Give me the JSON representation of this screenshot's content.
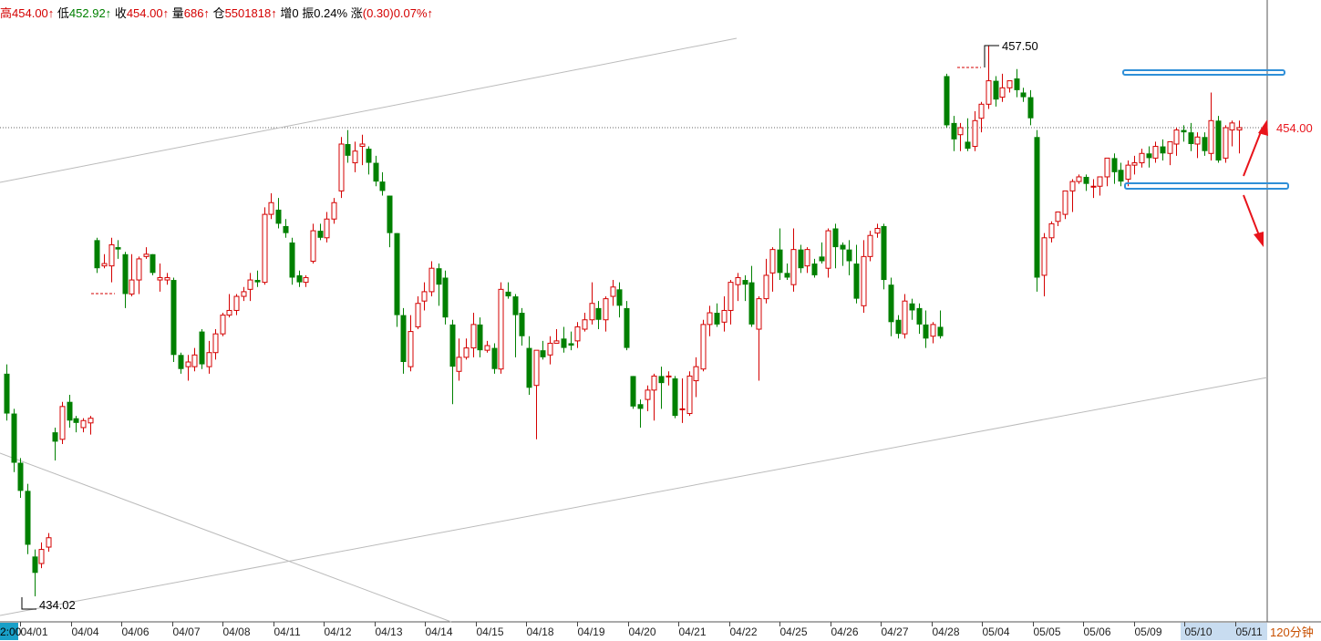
{
  "header": {
    "high_label": "高",
    "high_value": "454.00↑",
    "low_label": "低",
    "low_value": "452.92↑",
    "close_label": "收",
    "close_value": "454.00↑",
    "volume_label": "量",
    "volume_value": "686↑",
    "oi_label": "仓",
    "oi_value": "5501818↑",
    "inc_label": "增",
    "inc_value": "0",
    "amp_label": "振",
    "amp_value": "0.24%",
    "chg_label": "涨",
    "chg_value": "(0.30)0.07%↑"
  },
  "period_label": "120分钟",
  "left_edge_label": "2:00",
  "colors": {
    "up": "#d40000",
    "down": "#008000",
    "zone": "#2f8fd8",
    "arrow": "#e8141b"
  },
  "chart_data": {
    "type": "candlestick",
    "x_ticks": [
      "04/01",
      "04/04",
      "04/06",
      "04/07",
      "04/08",
      "04/11",
      "04/12",
      "04/13",
      "04/14",
      "04/15",
      "04/18",
      "04/19",
      "04/20",
      "04/21",
      "04/22",
      "04/25",
      "04/26",
      "04/27",
      "04/28",
      "05/04",
      "05/05",
      "05/06",
      "05/09",
      "05/10",
      "05/11"
    ],
    "annotations": {
      "high_mark": "457.50",
      "low_mark": "434.02",
      "price_label": "454.00"
    },
    "price_range_approx": [
      434.0,
      458.5
    ],
    "candles": [
      [
        443.5,
        441.8,
        443.9,
        441.5
      ],
      [
        441.8,
        439.7,
        442.0,
        439.3
      ],
      [
        439.7,
        438.5,
        439.9,
        438.2
      ],
      [
        438.5,
        436.2,
        438.8,
        435.8
      ],
      [
        435.7,
        435.0,
        436.0,
        434.0
      ],
      [
        435.4,
        436.0,
        436.3,
        435.2
      ],
      [
        436.1,
        436.5,
        436.7,
        435.9
      ],
      [
        441.0,
        440.6,
        441.2,
        439.8
      ],
      [
        440.7,
        442.1,
        442.3,
        440.5
      ],
      [
        442.3,
        441.5,
        442.6,
        441.2
      ],
      [
        441.6,
        441.4,
        441.7,
        441.0
      ],
      [
        441.2,
        441.5,
        441.6,
        441.0
      ],
      [
        441.4,
        441.6,
        441.7,
        440.9
      ],
      [
        449.2,
        448.0,
        449.3,
        447.8
      ],
      [
        448.1,
        448.2,
        448.6,
        448.0
      ],
      [
        448.1,
        449.0,
        449.3,
        447.4
      ],
      [
        448.9,
        448.8,
        449.2,
        448.4
      ],
      [
        448.6,
        446.9,
        448.7,
        446.3
      ],
      [
        446.9,
        447.5,
        448.6,
        446.8
      ],
      [
        447.5,
        448.4,
        448.5,
        446.9
      ],
      [
        448.5,
        448.6,
        448.9,
        448.4
      ],
      [
        448.6,
        447.8,
        448.6,
        447.7
      ],
      [
        447.5,
        447.6,
        448.2,
        447.0
      ],
      [
        447.5,
        447.6,
        447.8,
        447.3
      ],
      [
        447.5,
        444.3,
        447.6,
        444.0
      ],
      [
        444.3,
        443.7,
        444.4,
        443.5
      ],
      [
        443.8,
        444.0,
        444.3,
        443.2
      ],
      [
        443.8,
        444.3,
        444.6,
        443.6
      ],
      [
        445.3,
        443.9,
        445.4,
        443.7
      ],
      [
        443.8,
        444.4,
        444.9,
        443.5
      ],
      [
        444.4,
        445.2,
        445.4,
        444.1
      ],
      [
        445.2,
        446.0,
        446.1,
        445.1
      ],
      [
        446.0,
        446.2,
        446.9,
        445.9
      ],
      [
        446.2,
        446.8,
        446.9,
        446.0
      ],
      [
        446.8,
        447.0,
        447.2,
        446.6
      ],
      [
        447.1,
        447.5,
        447.8,
        446.6
      ],
      [
        447.5,
        447.4,
        447.9,
        447.2
      ],
      [
        447.4,
        450.3,
        450.6,
        447.3
      ],
      [
        450.3,
        450.8,
        451.2,
        450.1
      ],
      [
        450.5,
        449.9,
        451.0,
        449.7
      ],
      [
        449.8,
        449.5,
        450.1,
        449.3
      ],
      [
        449.1,
        447.6,
        449.3,
        447.3
      ],
      [
        447.7,
        447.4,
        447.9,
        447.2
      ],
      [
        447.4,
        447.6,
        447.7,
        447.2
      ],
      [
        448.3,
        449.6,
        449.9,
        448.2
      ],
      [
        449.6,
        449.3,
        449.9,
        449.2
      ],
      [
        449.3,
        450.1,
        450.4,
        449.1
      ],
      [
        450.1,
        450.8,
        451.0,
        449.9
      ],
      [
        451.3,
        453.3,
        453.6,
        451.0
      ],
      [
        453.3,
        452.8,
        453.9,
        452.5
      ],
      [
        452.5,
        453.0,
        453.4,
        452.1
      ],
      [
        453.2,
        453.3,
        453.7,
        452.4
      ],
      [
        453.1,
        452.5,
        453.2,
        452.0
      ],
      [
        452.5,
        451.7,
        452.8,
        451.5
      ],
      [
        451.7,
        451.3,
        452.1,
        451.1
      ],
      [
        451.1,
        449.5,
        451.1,
        448.9
      ],
      [
        449.5,
        446.0,
        449.5,
        445.5
      ],
      [
        446.0,
        444.0,
        446.3,
        443.5
      ],
      [
        443.8,
        445.3,
        446.0,
        443.6
      ],
      [
        445.5,
        446.5,
        446.8,
        445.4
      ],
      [
        446.6,
        447.0,
        447.4,
        446.2
      ],
      [
        447.0,
        448.0,
        448.3,
        446.8
      ],
      [
        448.0,
        447.3,
        448.2,
        446.4
      ],
      [
        447.6,
        445.9,
        447.9,
        445.6
      ],
      [
        445.6,
        443.8,
        445.8,
        442.2
      ],
      [
        443.6,
        444.2,
        445.0,
        443.2
      ],
      [
        444.2,
        444.6,
        445.0,
        444.1
      ],
      [
        444.6,
        445.6,
        446.1,
        444.2
      ],
      [
        445.6,
        444.5,
        445.9,
        444.2
      ],
      [
        444.5,
        444.7,
        444.9,
        444.4
      ],
      [
        444.6,
        443.7,
        444.8,
        443.5
      ],
      [
        443.7,
        447.1,
        447.4,
        443.5
      ],
      [
        447.0,
        446.8,
        447.4,
        446.7
      ],
      [
        446.8,
        446.0,
        446.9,
        444.2
      ],
      [
        446.1,
        445.1,
        446.3,
        444.7
      ],
      [
        444.6,
        442.9,
        445.1,
        442.6
      ],
      [
        443.0,
        444.5,
        444.5,
        440.7
      ],
      [
        444.5,
        444.2,
        444.9,
        444.1
      ],
      [
        444.3,
        444.8,
        445.1,
        443.9
      ],
      [
        444.8,
        444.9,
        445.4,
        444.8
      ],
      [
        445.0,
        444.6,
        445.5,
        444.4
      ],
      [
        444.8,
        444.7,
        445.3,
        444.5
      ],
      [
        444.9,
        445.5,
        445.7,
        444.6
      ],
      [
        445.4,
        445.8,
        446.1,
        445.3
      ],
      [
        445.8,
        446.5,
        447.4,
        445.6
      ],
      [
        446.3,
        445.8,
        446.6,
        445.4
      ],
      [
        445.8,
        446.7,
        446.8,
        445.3
      ],
      [
        446.8,
        447.2,
        447.5,
        446.4
      ],
      [
        447.1,
        446.4,
        447.4,
        445.9
      ],
      [
        446.3,
        444.6,
        446.6,
        444.5
      ],
      [
        443.4,
        442.1,
        443.4,
        442.0
      ],
      [
        442.2,
        442.0,
        442.4,
        441.2
      ],
      [
        442.4,
        442.8,
        443.0,
        441.9
      ],
      [
        442.8,
        443.4,
        443.5,
        441.5
      ],
      [
        443.4,
        443.1,
        443.8,
        442.0
      ],
      [
        443.4,
        443.4,
        443.6,
        443.0
      ],
      [
        443.3,
        441.7,
        443.4,
        441.6
      ],
      [
        442.0,
        442.0,
        443.3,
        441.4
      ],
      [
        441.8,
        443.4,
        443.6,
        441.7
      ],
      [
        443.2,
        443.8,
        444.2,
        442.5
      ],
      [
        443.7,
        445.6,
        445.8,
        443.6
      ],
      [
        445.6,
        446.1,
        446.4,
        445.1
      ],
      [
        446.1,
        445.6,
        446.5,
        445.5
      ],
      [
        445.7,
        446.2,
        446.8,
        445.3
      ],
      [
        446.2,
        447.4,
        447.5,
        445.6
      ],
      [
        447.3,
        447.6,
        447.8,
        446.6
      ],
      [
        447.5,
        447.3,
        447.7,
        446.6
      ],
      [
        447.4,
        445.6,
        448.1,
        445.5
      ],
      [
        445.4,
        446.7,
        446.8,
        443.2
      ],
      [
        446.7,
        447.7,
        448.4,
        446.5
      ],
      [
        447.8,
        448.8,
        448.9,
        447.0
      ],
      [
        448.8,
        447.8,
        449.7,
        447.5
      ],
      [
        447.8,
        447.6,
        448.2,
        447.5
      ],
      [
        447.3,
        448.8,
        449.7,
        447.0
      ],
      [
        448.8,
        448.0,
        449.0,
        447.8
      ],
      [
        448.1,
        448.8,
        448.9,
        447.8
      ],
      [
        448.2,
        447.7,
        448.4,
        447.6
      ],
      [
        448.5,
        448.3,
        449.1,
        448.2
      ],
      [
        448.0,
        449.6,
        449.7,
        447.6
      ],
      [
        449.7,
        448.9,
        449.9,
        448.0
      ],
      [
        449.0,
        448.8,
        449.1,
        448.1
      ],
      [
        448.8,
        448.3,
        449.2,
        447.7
      ],
      [
        448.2,
        446.7,
        449.0,
        446.5
      ],
      [
        446.4,
        448.5,
        449.2,
        446.1
      ],
      [
        448.5,
        449.4,
        449.6,
        448.3
      ],
      [
        449.5,
        449.7,
        449.9,
        449.3
      ],
      [
        449.8,
        447.5,
        449.9,
        447.1
      ],
      [
        447.3,
        445.7,
        447.6,
        445.1
      ],
      [
        445.8,
        445.2,
        446.0,
        445.0
      ],
      [
        445.2,
        446.6,
        446.9,
        445.0
      ],
      [
        446.5,
        446.2,
        446.7,
        445.8
      ],
      [
        446.3,
        445.6,
        446.5,
        445.2
      ],
      [
        445.6,
        445.0,
        446.2,
        444.6
      ],
      [
        445.1,
        445.6,
        445.7,
        444.8
      ],
      [
        445.5,
        445.1,
        446.2,
        445.0
      ],
      [
        456.2,
        454.1,
        456.3,
        454.0
      ],
      [
        454.2,
        453.5,
        454.5,
        453.0
      ],
      [
        453.7,
        454.0,
        454.2,
        453.0
      ],
      [
        453.4,
        453.1,
        454.4,
        453.0
      ],
      [
        453.2,
        454.3,
        454.7,
        453.0
      ],
      [
        454.4,
        455.0,
        455.1,
        453.8
      ],
      [
        455.0,
        456.0,
        457.5,
        454.8
      ],
      [
        456.0,
        455.2,
        456.2,
        454.9
      ],
      [
        455.3,
        455.7,
        456.3,
        455.1
      ],
      [
        455.7,
        456.0,
        456.0,
        455.5
      ],
      [
        456.1,
        455.6,
        456.5,
        455.3
      ],
      [
        455.5,
        455.3,
        455.7,
        455.1
      ],
      [
        455.3,
        454.4,
        455.6,
        454.1
      ],
      [
        453.6,
        447.6,
        453.9,
        447.0
      ],
      [
        447.7,
        449.3,
        449.5,
        446.8
      ],
      [
        449.3,
        449.9,
        450.0,
        449.1
      ],
      [
        450.0,
        450.4,
        450.4,
        449.8
      ],
      [
        450.3,
        451.3,
        451.3,
        450.1
      ],
      [
        451.3,
        451.7,
        451.8,
        450.4
      ],
      [
        451.7,
        451.9,
        452.0,
        451.6
      ],
      [
        451.9,
        451.6,
        452.0,
        451.3
      ],
      [
        451.5,
        451.5,
        451.8,
        451.0
      ],
      [
        451.5,
        451.9,
        451.9,
        451.1
      ],
      [
        451.9,
        452.7,
        452.7,
        451.5
      ],
      [
        452.7,
        452.1,
        452.9,
        451.6
      ],
      [
        452.2,
        451.7,
        452.5,
        451.5
      ],
      [
        451.8,
        452.4,
        452.6,
        451.5
      ],
      [
        452.4,
        452.5,
        452.8,
        452.0
      ],
      [
        452.5,
        452.9,
        453.1,
        452.3
      ],
      [
        452.9,
        452.7,
        453.2,
        452.3
      ],
      [
        452.7,
        453.2,
        453.4,
        452.5
      ],
      [
        453.2,
        452.9,
        453.5,
        452.6
      ],
      [
        452.9,
        453.4,
        453.4,
        452.4
      ],
      [
        453.3,
        453.9,
        454.0,
        452.8
      ],
      [
        453.9,
        453.8,
        454.1,
        453.4
      ],
      [
        453.8,
        453.3,
        454.2,
        453.0
      ],
      [
        453.3,
        453.6,
        453.8,
        452.7
      ],
      [
        453.6,
        453.0,
        453.8,
        452.8
      ],
      [
        452.9,
        454.3,
        455.5,
        452.6
      ],
      [
        454.3,
        452.6,
        454.5,
        452.5
      ],
      [
        452.7,
        454.0,
        454.1,
        452.5
      ],
      [
        453.9,
        454.2,
        454.3,
        453.2
      ],
      [
        453.9,
        454.0,
        454.3,
        452.9
      ]
    ]
  }
}
